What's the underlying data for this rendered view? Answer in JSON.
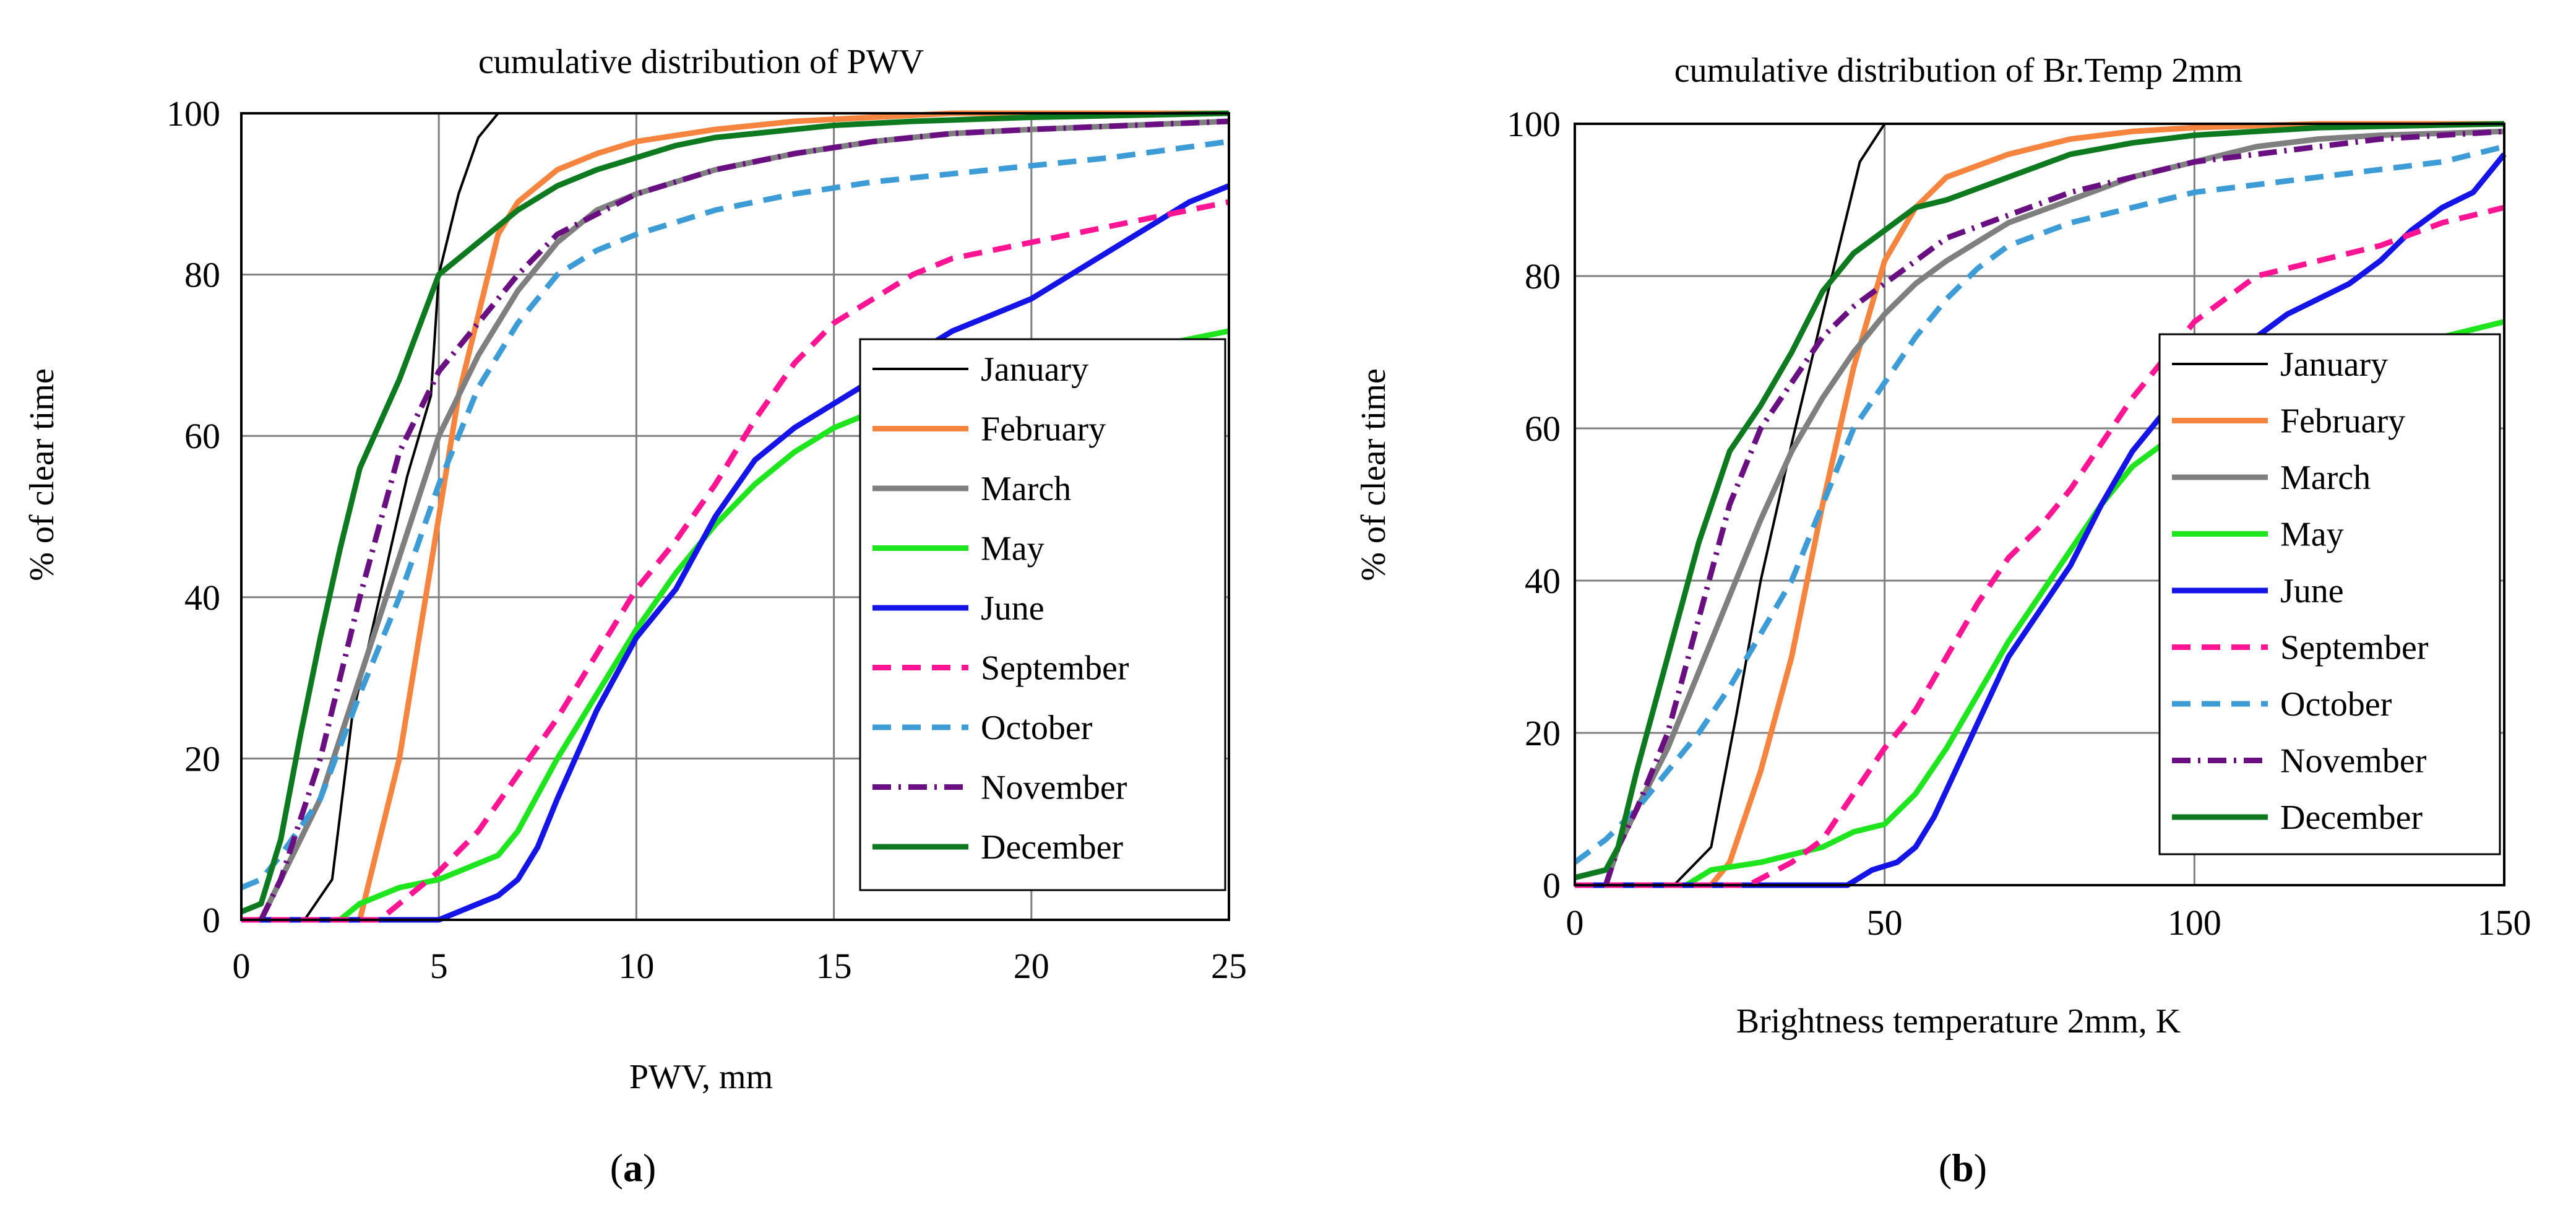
{
  "figure": {
    "panel_a_label": "a",
    "panel_b_label": "b"
  },
  "chart_data": [
    {
      "type": "line",
      "title": "cumulative distribution of PWV",
      "xlabel": "PWV, mm",
      "ylabel": "% of clear time",
      "xlim": [
        0,
        25
      ],
      "ylim": [
        0,
        100
      ],
      "xticks": [
        0,
        5,
        10,
        15,
        20,
        25
      ],
      "yticks": [
        0,
        20,
        40,
        60,
        80,
        100
      ],
      "grid": true,
      "legend_position": "center-right",
      "series": [
        {
          "name": "January",
          "color": "#000000",
          "style": "solid",
          "width": "thin",
          "x": [
            1.6,
            2.3,
            2.8,
            3.5,
            4.2,
            4.8,
            5.0,
            5.5,
            6.0,
            6.5
          ],
          "y": [
            0,
            5,
            25,
            40,
            55,
            65,
            80,
            90,
            97,
            100
          ]
        },
        {
          "name": "February",
          "color": "#f5843f",
          "style": "solid",
          "width": "thick",
          "x": [
            3.0,
            3.5,
            4.0,
            4.5,
            5.0,
            5.5,
            6.0,
            6.5,
            7.0,
            8.0,
            9.0,
            10.0,
            12.0,
            14.0,
            16.0,
            18.0,
            25.0
          ],
          "y": [
            0,
            10,
            20,
            35,
            50,
            65,
            75,
            85,
            89,
            93,
            95,
            96.5,
            98,
            99,
            99.5,
            100,
            100
          ]
        },
        {
          "name": "March",
          "color": "#7f7f7f",
          "style": "solid",
          "width": "thick",
          "x": [
            0.5,
            1.0,
            2.0,
            3.0,
            4.0,
            5.0,
            6.0,
            7.0,
            8.0,
            9.0,
            10.0,
            12.0,
            14.0,
            16.0,
            18.0,
            20.0,
            25.0
          ],
          "y": [
            0,
            5,
            15,
            30,
            45,
            60,
            70,
            78,
            84,
            88,
            90,
            93,
            95,
            96.5,
            97.5,
            98,
            99
          ]
        },
        {
          "name": "May",
          "color": "#1fe51f",
          "style": "solid",
          "width": "thick",
          "x": [
            0,
            2.5,
            3.0,
            4.0,
            5.0,
            6.0,
            6.5,
            7.0,
            8.0,
            9.0,
            10.0,
            11.0,
            12.0,
            13.0,
            14.0,
            15.0,
            16.0,
            18.0,
            20.0,
            22.0,
            25.0
          ],
          "y": [
            0,
            0,
            2,
            4,
            5,
            7,
            8,
            11,
            20,
            28,
            36,
            43,
            49,
            54,
            58,
            61,
            63,
            66,
            68,
            70,
            73
          ]
        },
        {
          "name": "June",
          "color": "#1414e6",
          "style": "solid",
          "width": "thick",
          "x": [
            0,
            5.0,
            5.5,
            6.0,
            6.5,
            7.0,
            7.5,
            8.0,
            9.0,
            10.0,
            11.0,
            12.0,
            13.0,
            14.0,
            15.0,
            16.0,
            17.0,
            18.0,
            19.0,
            20.0,
            21.0,
            22.0,
            23.0,
            24.0,
            25.0
          ],
          "y": [
            0,
            0,
            1,
            2,
            3,
            5,
            9,
            15,
            26,
            35,
            41,
            50,
            57,
            61,
            64,
            67,
            70,
            73,
            75,
            77,
            80,
            83,
            86,
            89,
            91
          ]
        },
        {
          "name": "September",
          "color": "#ff1493",
          "style": "dashed",
          "width": "thick",
          "x": [
            0,
            3.5,
            4.0,
            5.0,
            6.0,
            7.0,
            8.0,
            9.0,
            10.0,
            11.0,
            12.0,
            13.0,
            14.0,
            15.0,
            16.0,
            17.0,
            18.0,
            20.0,
            22.0,
            25.0
          ],
          "y": [
            0,
            0,
            2,
            6,
            11,
            18,
            25,
            33,
            41,
            47,
            54,
            62,
            69,
            74,
            77,
            80,
            82,
            84,
            86,
            89
          ]
        },
        {
          "name": "October",
          "color": "#3d9bd6",
          "style": "dashed",
          "width": "thick",
          "x": [
            0,
            0.5,
            1.0,
            2.0,
            3.0,
            4.0,
            5.0,
            6.0,
            7.0,
            8.0,
            9.0,
            10.0,
            12.0,
            14.0,
            16.0,
            18.0,
            20.0,
            22.0,
            25.0
          ],
          "y": [
            4,
            5,
            8,
            15,
            28,
            40,
            54,
            66,
            74,
            80,
            83,
            85,
            88,
            90,
            91.5,
            92.5,
            93.5,
            94.5,
            96.5
          ]
        },
        {
          "name": "November",
          "color": "#6a0f82",
          "style": "dashdot",
          "width": "thick",
          "x": [
            0.5,
            1.0,
            2.0,
            3.0,
            4.0,
            5.0,
            6.0,
            7.0,
            8.0,
            10.0,
            12.0,
            14.0,
            16.0,
            18.0,
            20.0,
            25.0
          ],
          "y": [
            0,
            5,
            20,
            40,
            58,
            68,
            74,
            80,
            85,
            90,
            93,
            95,
            96.5,
            97.5,
            98,
            99
          ]
        },
        {
          "name": "December",
          "color": "#0e7a1f",
          "style": "solid",
          "width": "thick",
          "x": [
            0,
            0.5,
            1.0,
            1.5,
            2.0,
            2.5,
            3.0,
            4.0,
            5.0,
            6.0,
            7.0,
            8.0,
            9.0,
            10.0,
            11.0,
            12.0,
            13.0,
            15.0,
            17.0,
            20.0,
            25.0
          ],
          "y": [
            1,
            2,
            10,
            23,
            35,
            46,
            56,
            67,
            80,
            84,
            88,
            91,
            93,
            94.5,
            96,
            97,
            97.5,
            98.5,
            99,
            99.5,
            100
          ]
        }
      ]
    },
    {
      "type": "line",
      "title": "cumulative distribution of Br.Temp 2mm",
      "xlabel": "Brightness temperature 2mm, K",
      "ylabel": "% of clear time",
      "xlim": [
        0,
        150
      ],
      "ylim": [
        0,
        100
      ],
      "xticks": [
        0,
        50,
        100,
        150
      ],
      "yticks": [
        0,
        20,
        40,
        60,
        80,
        100
      ],
      "grid": true,
      "legend_position": "center-right",
      "series": [
        {
          "name": "January",
          "color": "#000000",
          "style": "solid",
          "width": "thin",
          "x": [
            16,
            22,
            26,
            30,
            35,
            40,
            43,
            46,
            50
          ],
          "y": [
            0,
            5,
            22,
            40,
            58,
            75,
            85,
            95,
            100
          ]
        },
        {
          "name": "February",
          "color": "#f5843f",
          "style": "solid",
          "width": "thick",
          "x": [
            22,
            25,
            30,
            35,
            40,
            45,
            50,
            55,
            60,
            70,
            80,
            90,
            100,
            120,
            150
          ],
          "y": [
            0,
            3,
            15,
            30,
            50,
            68,
            82,
            89,
            93,
            96,
            98,
            99,
            99.5,
            100,
            100
          ]
        },
        {
          "name": "March",
          "color": "#7f7f7f",
          "style": "solid",
          "width": "thick",
          "x": [
            5,
            7,
            10,
            15,
            20,
            25,
            30,
            35,
            40,
            45,
            50,
            55,
            60,
            70,
            80,
            90,
            100,
            110,
            120,
            130,
            150
          ],
          "y": [
            0,
            5,
            10,
            18,
            28,
            38,
            48,
            57,
            64,
            70,
            75,
            79,
            82,
            87,
            90,
            93,
            95,
            97,
            98,
            98.5,
            99
          ]
        },
        {
          "name": "May",
          "color": "#1fe51f",
          "style": "solid",
          "width": "thick",
          "x": [
            0,
            18,
            22,
            30,
            35,
            40,
            45,
            50,
            55,
            60,
            65,
            70,
            75,
            80,
            85,
            90,
            95,
            100,
            110,
            120,
            130,
            140,
            150
          ],
          "y": [
            0,
            0,
            2,
            3,
            4,
            5,
            7,
            8,
            12,
            18,
            25,
            32,
            38,
            44,
            50,
            55,
            58,
            62,
            66,
            68,
            70,
            72,
            74
          ]
        },
        {
          "name": "June",
          "color": "#1414e6",
          "style": "solid",
          "width": "thick",
          "x": [
            0,
            44,
            48,
            52,
            55,
            58,
            62,
            66,
            70,
            75,
            80,
            85,
            90,
            95,
            100,
            105,
            110,
            115,
            120,
            125,
            130,
            135,
            140,
            145,
            148,
            150
          ],
          "y": [
            0,
            0,
            2,
            3,
            5,
            9,
            16,
            23,
            30,
            36,
            42,
            50,
            57,
            62,
            65,
            69,
            72,
            75,
            77,
            79,
            82,
            86,
            89,
            91,
            94,
            96
          ]
        },
        {
          "name": "September",
          "color": "#ff1493",
          "style": "dashed",
          "width": "thick",
          "x": [
            0,
            28,
            35,
            40,
            45,
            50,
            55,
            60,
            65,
            70,
            75,
            80,
            85,
            90,
            95,
            100,
            105,
            110,
            120,
            130,
            140,
            150
          ],
          "y": [
            0,
            0,
            3,
            6,
            12,
            18,
            23,
            30,
            37,
            43,
            47,
            52,
            58,
            64,
            69,
            74,
            77,
            80,
            82,
            84,
            87,
            89
          ]
        },
        {
          "name": "October",
          "color": "#3d9bd6",
          "style": "dashed",
          "width": "thick",
          "x": [
            0,
            5,
            10,
            15,
            20,
            25,
            30,
            35,
            40,
            45,
            50,
            55,
            60,
            65,
            70,
            80,
            90,
            100,
            110,
            120,
            130,
            140,
            150
          ],
          "y": [
            3,
            6,
            10,
            15,
            20,
            26,
            33,
            40,
            50,
            60,
            66,
            72,
            77,
            81,
            84,
            87,
            89,
            91,
            92,
            93,
            94,
            95,
            97
          ]
        },
        {
          "name": "November",
          "color": "#6a0f82",
          "style": "dashdot",
          "width": "thick",
          "x": [
            5,
            7,
            10,
            15,
            20,
            25,
            30,
            35,
            40,
            45,
            50,
            55,
            60,
            70,
            80,
            90,
            100,
            110,
            120,
            130,
            150
          ],
          "y": [
            0,
            5,
            10,
            20,
            35,
            50,
            60,
            66,
            72,
            76,
            79,
            82,
            85,
            88,
            91,
            93,
            95,
            96,
            97,
            98,
            99
          ]
        },
        {
          "name": "December",
          "color": "#0e7a1f",
          "style": "solid",
          "width": "thick",
          "x": [
            0,
            5,
            7,
            10,
            15,
            20,
            25,
            30,
            35,
            40,
            45,
            50,
            55,
            60,
            70,
            80,
            90,
            100,
            110,
            120,
            150
          ],
          "y": [
            1,
            2,
            5,
            15,
            30,
            45,
            57,
            63,
            70,
            78,
            83,
            86,
            89,
            90,
            93,
            96,
            97.5,
            98.5,
            99,
            99.5,
            100
          ]
        }
      ]
    }
  ]
}
